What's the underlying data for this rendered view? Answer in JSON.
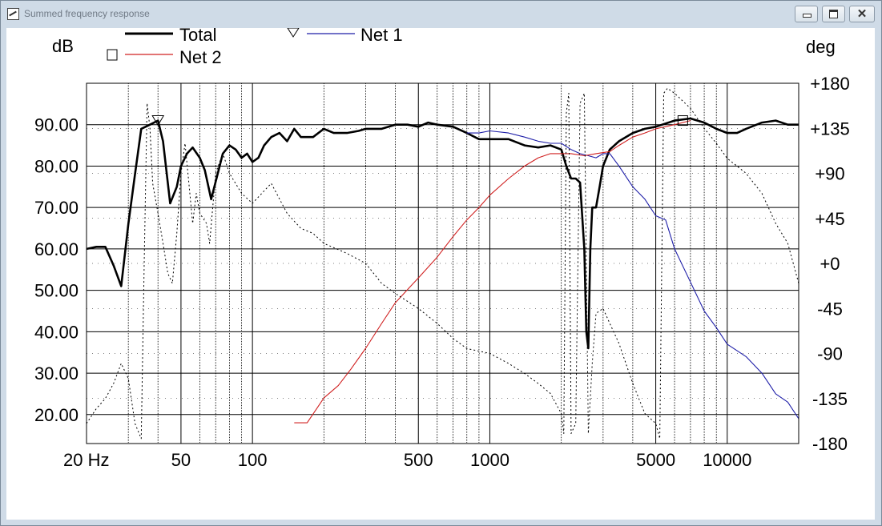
{
  "window": {
    "title": "Summed frequency response",
    "minimize_icon": "minimize-icon",
    "maximize_icon": "maximize-icon",
    "close_icon": "close-icon"
  },
  "chart_data": {
    "type": "line",
    "xscale": "log",
    "xlim": [
      20,
      20000
    ],
    "ylim_left": [
      13,
      100
    ],
    "ylim_right": [
      -180,
      180
    ],
    "ylabel_left": "dB",
    "ylabel_right": "deg",
    "grid": true,
    "legend_placement": "top",
    "x_tick_labels": [
      {
        "value": 20,
        "label": "20 Hz"
      },
      {
        "value": 50,
        "label": "50"
      },
      {
        "value": 100,
        "label": "100"
      },
      {
        "value": 500,
        "label": "500"
      },
      {
        "value": 1000,
        "label": "1000"
      },
      {
        "value": 5000,
        "label": "5000"
      },
      {
        "value": 10000,
        "label": "10000"
      }
    ],
    "y_left_ticks": [
      {
        "value": 90,
        "label": "90.00"
      },
      {
        "value": 80,
        "label": "80.00"
      },
      {
        "value": 70,
        "label": "70.00"
      },
      {
        "value": 60,
        "label": "60.00"
      },
      {
        "value": 50,
        "label": "50.00"
      },
      {
        "value": 40,
        "label": "40.00"
      },
      {
        "value": 30,
        "label": "30.00"
      },
      {
        "value": 20,
        "label": "20.00"
      }
    ],
    "y_right_ticks": [
      {
        "value": 180,
        "label": "+180"
      },
      {
        "value": 135,
        "label": "+135"
      },
      {
        "value": 90,
        "label": "+90"
      },
      {
        "value": 45,
        "label": "+45"
      },
      {
        "value": 0,
        "label": "+0"
      },
      {
        "value": -45,
        "label": "-45"
      },
      {
        "value": -90,
        "label": "-90"
      },
      {
        "value": -135,
        "label": "-135"
      },
      {
        "value": -180,
        "label": "-180"
      }
    ],
    "legend": [
      {
        "name": "Total",
        "color": "#000000",
        "marker": "none"
      },
      {
        "name": "Net 1",
        "color": "#1f1fa8",
        "marker": "triangle"
      },
      {
        "name": "Net 2",
        "color": "#d02020",
        "marker": "square"
      }
    ],
    "series": [
      {
        "name": "Total",
        "color": "#000000",
        "axis": "left",
        "points": [
          [
            20,
            60
          ],
          [
            22,
            60.5
          ],
          [
            24,
            60.5
          ],
          [
            26,
            56
          ],
          [
            28,
            51
          ],
          [
            30,
            66
          ],
          [
            32,
            78
          ],
          [
            34,
            89
          ],
          [
            37,
            90
          ],
          [
            40,
            91
          ],
          [
            42,
            86
          ],
          [
            45,
            71
          ],
          [
            48,
            75
          ],
          [
            50,
            80
          ],
          [
            53,
            83
          ],
          [
            56,
            84.5
          ],
          [
            60,
            82
          ],
          [
            63,
            79
          ],
          [
            67,
            72
          ],
          [
            72,
            79
          ],
          [
            75,
            83
          ],
          [
            80,
            85
          ],
          [
            85,
            84
          ],
          [
            90,
            82
          ],
          [
            95,
            83
          ],
          [
            100,
            81
          ],
          [
            106,
            82
          ],
          [
            112,
            85
          ],
          [
            120,
            87
          ],
          [
            130,
            88
          ],
          [
            140,
            86
          ],
          [
            150,
            89
          ],
          [
            160,
            87
          ],
          [
            180,
            87
          ],
          [
            200,
            89
          ],
          [
            220,
            88
          ],
          [
            250,
            88
          ],
          [
            280,
            88.5
          ],
          [
            300,
            89
          ],
          [
            350,
            89
          ],
          [
            400,
            90
          ],
          [
            450,
            90
          ],
          [
            500,
            89.5
          ],
          [
            550,
            90.5
          ],
          [
            600,
            90
          ],
          [
            700,
            89.5
          ],
          [
            800,
            88
          ],
          [
            900,
            86.5
          ],
          [
            1000,
            86.5
          ],
          [
            1200,
            86.5
          ],
          [
            1400,
            85
          ],
          [
            1600,
            84.5
          ],
          [
            1800,
            85
          ],
          [
            2000,
            84
          ],
          [
            2100,
            80
          ],
          [
            2200,
            77
          ],
          [
            2300,
            77
          ],
          [
            2400,
            76
          ],
          [
            2500,
            60
          ],
          [
            2550,
            40
          ],
          [
            2600,
            36
          ],
          [
            2650,
            60
          ],
          [
            2700,
            70
          ],
          [
            2800,
            70
          ],
          [
            2900,
            75
          ],
          [
            3000,
            80
          ],
          [
            3200,
            84
          ],
          [
            3500,
            86
          ],
          [
            4000,
            88
          ],
          [
            4500,
            89
          ],
          [
            5000,
            89.5
          ],
          [
            6000,
            91
          ],
          [
            7000,
            91.5
          ],
          [
            8000,
            90.5
          ],
          [
            9000,
            89
          ],
          [
            10000,
            88
          ],
          [
            11000,
            88
          ],
          [
            12000,
            89
          ],
          [
            14000,
            90.5
          ],
          [
            16000,
            91
          ],
          [
            18000,
            90
          ],
          [
            20000,
            90
          ]
        ]
      },
      {
        "name": "Net 1",
        "color": "#1f1fa8",
        "axis": "left",
        "points": [
          [
            800,
            88
          ],
          [
            900,
            88
          ],
          [
            1000,
            88.5
          ],
          [
            1200,
            88
          ],
          [
            1400,
            87
          ],
          [
            1600,
            86
          ],
          [
            1800,
            85.5
          ],
          [
            2000,
            85.5
          ],
          [
            2200,
            84
          ],
          [
            2400,
            83
          ],
          [
            2600,
            82.5
          ],
          [
            2800,
            82
          ],
          [
            3000,
            83
          ],
          [
            3200,
            83
          ],
          [
            3500,
            80
          ],
          [
            4000,
            75
          ],
          [
            4500,
            72
          ],
          [
            5000,
            68
          ],
          [
            5500,
            67
          ],
          [
            6000,
            60
          ],
          [
            7000,
            52
          ],
          [
            8000,
            45
          ],
          [
            9000,
            41
          ],
          [
            10000,
            37
          ],
          [
            12000,
            34
          ],
          [
            14000,
            30
          ],
          [
            16000,
            25
          ],
          [
            18000,
            23
          ],
          [
            20000,
            19
          ]
        ]
      },
      {
        "name": "Net 2",
        "color": "#d02020",
        "axis": "left",
        "points": [
          [
            150,
            18
          ],
          [
            170,
            18
          ],
          [
            200,
            24
          ],
          [
            230,
            27
          ],
          [
            260,
            31
          ],
          [
            300,
            36
          ],
          [
            350,
            42
          ],
          [
            400,
            47
          ],
          [
            500,
            53
          ],
          [
            600,
            58
          ],
          [
            700,
            63
          ],
          [
            800,
            67
          ],
          [
            900,
            70
          ],
          [
            1000,
            73
          ],
          [
            1200,
            77
          ],
          [
            1400,
            80
          ],
          [
            1600,
            82
          ],
          [
            1800,
            83
          ],
          [
            2000,
            83
          ],
          [
            2200,
            83
          ],
          [
            2500,
            82.5
          ],
          [
            2800,
            83
          ],
          [
            3200,
            83.5
          ],
          [
            3500,
            85
          ],
          [
            4000,
            87
          ],
          [
            4500,
            88
          ],
          [
            5000,
            89
          ],
          [
            6000,
            90
          ],
          [
            7000,
            91
          ]
        ]
      },
      {
        "name": "Phase",
        "color": "#000000",
        "axis": "right",
        "dash": "2,3",
        "points": [
          [
            20,
            -160
          ],
          [
            22,
            -145
          ],
          [
            24,
            -135
          ],
          [
            26,
            -120
          ],
          [
            28,
            -100
          ],
          [
            30,
            -115
          ],
          [
            32,
            -160
          ],
          [
            34,
            -175
          ],
          [
            35,
            0
          ],
          [
            36,
            160
          ],
          [
            37,
            135
          ],
          [
            38,
            80
          ],
          [
            40,
            50
          ],
          [
            42,
            20
          ],
          [
            44,
            -10
          ],
          [
            46,
            -20
          ],
          [
            48,
            30
          ],
          [
            50,
            90
          ],
          [
            52,
            120
          ],
          [
            54,
            80
          ],
          [
            56,
            40
          ],
          [
            58,
            70
          ],
          [
            60,
            50
          ],
          [
            62,
            45
          ],
          [
            64,
            40
          ],
          [
            66,
            20
          ],
          [
            70,
            90
          ],
          [
            75,
            110
          ],
          [
            80,
            90
          ],
          [
            90,
            70
          ],
          [
            100,
            60
          ],
          [
            120,
            80
          ],
          [
            140,
            50
          ],
          [
            160,
            35
          ],
          [
            180,
            30
          ],
          [
            200,
            20
          ],
          [
            250,
            10
          ],
          [
            300,
            0
          ],
          [
            350,
            -20
          ],
          [
            400,
            -30
          ],
          [
            500,
            -45
          ],
          [
            600,
            -60
          ],
          [
            700,
            -75
          ],
          [
            800,
            -85
          ],
          [
            1000,
            -90
          ],
          [
            1200,
            -100
          ],
          [
            1400,
            -110
          ],
          [
            1600,
            -120
          ],
          [
            1800,
            -130
          ],
          [
            2000,
            -150
          ],
          [
            2050,
            -170
          ],
          [
            2100,
            150
          ],
          [
            2150,
            170
          ],
          [
            2200,
            -170
          ],
          [
            2300,
            -160
          ],
          [
            2400,
            160
          ],
          [
            2500,
            170
          ],
          [
            2600,
            -170
          ],
          [
            2700,
            -100
          ],
          [
            2800,
            -50
          ],
          [
            3000,
            -45
          ],
          [
            3200,
            -60
          ],
          [
            3500,
            -80
          ],
          [
            4000,
            -120
          ],
          [
            4500,
            -150
          ],
          [
            5000,
            -160
          ],
          [
            5200,
            -175
          ],
          [
            5400,
            170
          ],
          [
            5600,
            175
          ],
          [
            6000,
            170
          ],
          [
            7000,
            155
          ],
          [
            8000,
            135
          ],
          [
            9000,
            120
          ],
          [
            10000,
            105
          ],
          [
            12000,
            90
          ],
          [
            14000,
            70
          ],
          [
            16000,
            40
          ],
          [
            18000,
            20
          ],
          [
            20000,
            -20
          ]
        ]
      }
    ],
    "markers": [
      {
        "series": "Net 1",
        "shape": "triangle",
        "x": 40,
        "y": 91
      },
      {
        "series": "Net 2",
        "shape": "square",
        "x": 6500,
        "y": 91
      }
    ]
  }
}
